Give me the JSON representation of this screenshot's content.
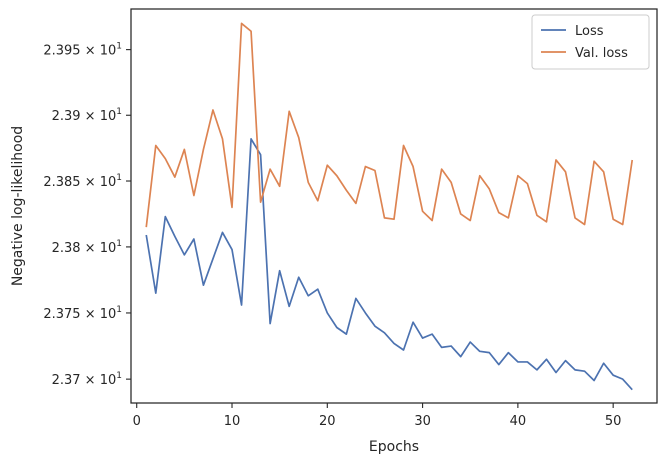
{
  "chart_data": {
    "type": "line",
    "xlabel": "Epochs",
    "ylabel": "Negative log-likelihood",
    "xlim": [
      -0.6,
      54.6
    ],
    "ylim": [
      23.682,
      23.981
    ],
    "x_ticks": [
      0,
      10,
      20,
      30,
      40,
      50
    ],
    "x_tick_labels": [
      "0",
      "10",
      "20",
      "30",
      "40",
      "50"
    ],
    "y_ticks": [
      23.7,
      23.75,
      23.8,
      23.85,
      23.9,
      23.95
    ],
    "y_tick_labels": [
      {
        "mantissa": "2.37",
        "exp": "1"
      },
      {
        "mantissa": "2.375",
        "exp": "1"
      },
      {
        "mantissa": "2.38",
        "exp": "1"
      },
      {
        "mantissa": "2.385",
        "exp": "1"
      },
      {
        "mantissa": "2.39",
        "exp": "1"
      },
      {
        "mantissa": "2.395",
        "exp": "1"
      }
    ],
    "y_scale": "log",
    "grid": false,
    "legend_position": "top-right",
    "x": [
      1,
      2,
      3,
      4,
      5,
      6,
      7,
      8,
      9,
      10,
      11,
      12,
      13,
      14,
      15,
      16,
      17,
      18,
      19,
      20,
      21,
      22,
      23,
      24,
      25,
      26,
      27,
      28,
      29,
      30,
      31,
      32,
      33,
      34,
      35,
      36,
      37,
      38,
      39,
      40,
      41,
      42,
      43,
      44,
      45,
      46,
      47,
      48,
      49,
      50,
      51,
      52
    ],
    "series": [
      {
        "name": "Loss",
        "color": "#4c72b0",
        "values": [
          23.809,
          23.765,
          23.823,
          23.808,
          23.794,
          23.806,
          23.771,
          23.791,
          23.811,
          23.798,
          23.756,
          23.882,
          23.87,
          23.742,
          23.782,
          23.755,
          23.777,
          23.763,
          23.768,
          23.75,
          23.739,
          23.734,
          23.761,
          23.75,
          23.74,
          23.735,
          23.727,
          23.722,
          23.743,
          23.731,
          23.734,
          23.724,
          23.725,
          23.717,
          23.728,
          23.721,
          23.72,
          23.711,
          23.72,
          23.713,
          23.713,
          23.707,
          23.715,
          23.705,
          23.714,
          23.707,
          23.706,
          23.699,
          23.712,
          23.703,
          23.7,
          23.692
        ]
      },
      {
        "name": "Val. loss",
        "color": "#dd8452",
        "values": [
          23.815,
          23.877,
          23.867,
          23.853,
          23.874,
          23.839,
          23.874,
          23.904,
          23.882,
          23.83,
          23.97,
          23.964,
          23.834,
          23.859,
          23.846,
          23.903,
          23.883,
          23.849,
          23.835,
          23.862,
          23.854,
          23.843,
          23.833,
          23.861,
          23.858,
          23.822,
          23.821,
          23.877,
          23.861,
          23.827,
          23.82,
          23.859,
          23.849,
          23.825,
          23.82,
          23.854,
          23.844,
          23.826,
          23.822,
          23.854,
          23.848,
          23.824,
          23.819,
          23.866,
          23.857,
          23.822,
          23.817,
          23.865,
          23.857,
          23.821,
          23.817,
          23.866
        ]
      }
    ]
  }
}
